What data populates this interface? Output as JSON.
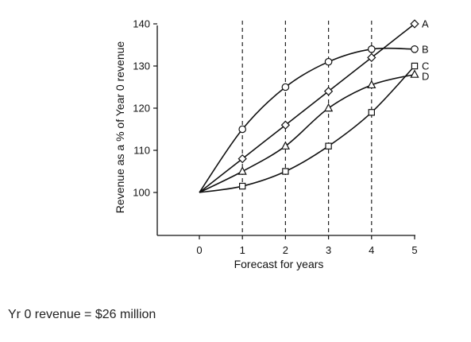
{
  "chart_data": {
    "type": "line",
    "xlabel": "Forecast for years",
    "ylabel": "Revenue as a % of Year 0 revenue",
    "x": [
      0,
      1,
      2,
      3,
      4,
      5
    ],
    "xlim": [
      -1,
      5
    ],
    "ylim": [
      90,
      140
    ],
    "xticks": [
      0,
      1,
      2,
      3,
      4,
      5
    ],
    "yticks": [
      100,
      110,
      120,
      130,
      140
    ],
    "gridlines": {
      "vertical_dashed_at_x": [
        1,
        2,
        3,
        4
      ],
      "horizontal": false
    },
    "series": [
      {
        "name": "A",
        "marker": "diamond",
        "values": [
          100,
          108,
          116,
          124,
          132,
          140
        ]
      },
      {
        "name": "B",
        "marker": "circle",
        "values": [
          100,
          115,
          125,
          131,
          134,
          134
        ]
      },
      {
        "name": "C",
        "marker": "square",
        "values": [
          100,
          101.5,
          105,
          111,
          119,
          130
        ]
      },
      {
        "name": "D",
        "marker": "triangle",
        "values": [
          100,
          105,
          111,
          120,
          125.5,
          128
        ]
      }
    ],
    "colors": {
      "line": "#111111",
      "marker_fill": "#ffffff",
      "gridline": "#222222"
    }
  },
  "footer": {
    "note": "Yr 0 revenue = $26 million"
  }
}
